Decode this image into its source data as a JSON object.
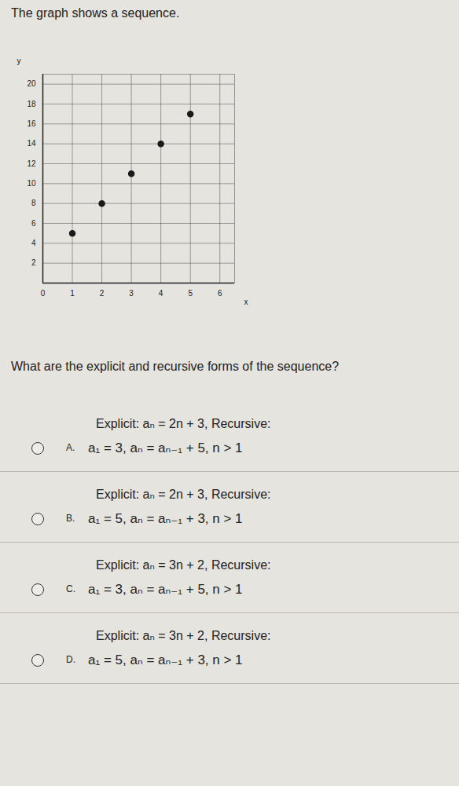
{
  "header": {
    "title": "The graph shows a sequence."
  },
  "chart_data": {
    "type": "scatter",
    "x": [
      1,
      2,
      3,
      4,
      5
    ],
    "values": [
      5,
      8,
      11,
      14,
      17
    ],
    "x_label": "x",
    "y_label": "y",
    "xlim": [
      0,
      6.5
    ],
    "ylim": [
      0,
      21
    ],
    "xticks": [
      0,
      1,
      2,
      3,
      4,
      5,
      6
    ],
    "yticks": [
      2,
      4,
      6,
      8,
      10,
      12,
      14,
      16,
      18,
      20
    ],
    "grid": true,
    "color": "#1a1a1a",
    "marker": "circle"
  },
  "question": "What are the explicit and recursive forms of the sequence?",
  "options": [
    {
      "letter": "A.",
      "explicit": "Explicit: aₙ = 2n + 3, Recursive:",
      "recursive": "a₁ = 3, aₙ = aₙ₋₁ + 5, n > 1"
    },
    {
      "letter": "B.",
      "explicit": "Explicit: aₙ = 2n + 3, Recursive:",
      "recursive": "a₁ = 5, aₙ = aₙ₋₁ + 3, n > 1"
    },
    {
      "letter": "C.",
      "explicit": "Explicit: aₙ = 3n + 2, Recursive:",
      "recursive": "a₁ = 3, aₙ = aₙ₋₁ + 5, n > 1"
    },
    {
      "letter": "D.",
      "explicit": "Explicit: aₙ = 3n + 2, Recursive:",
      "recursive": "a₁ = 5, aₙ = aₙ₋₁ + 3, n > 1"
    }
  ]
}
